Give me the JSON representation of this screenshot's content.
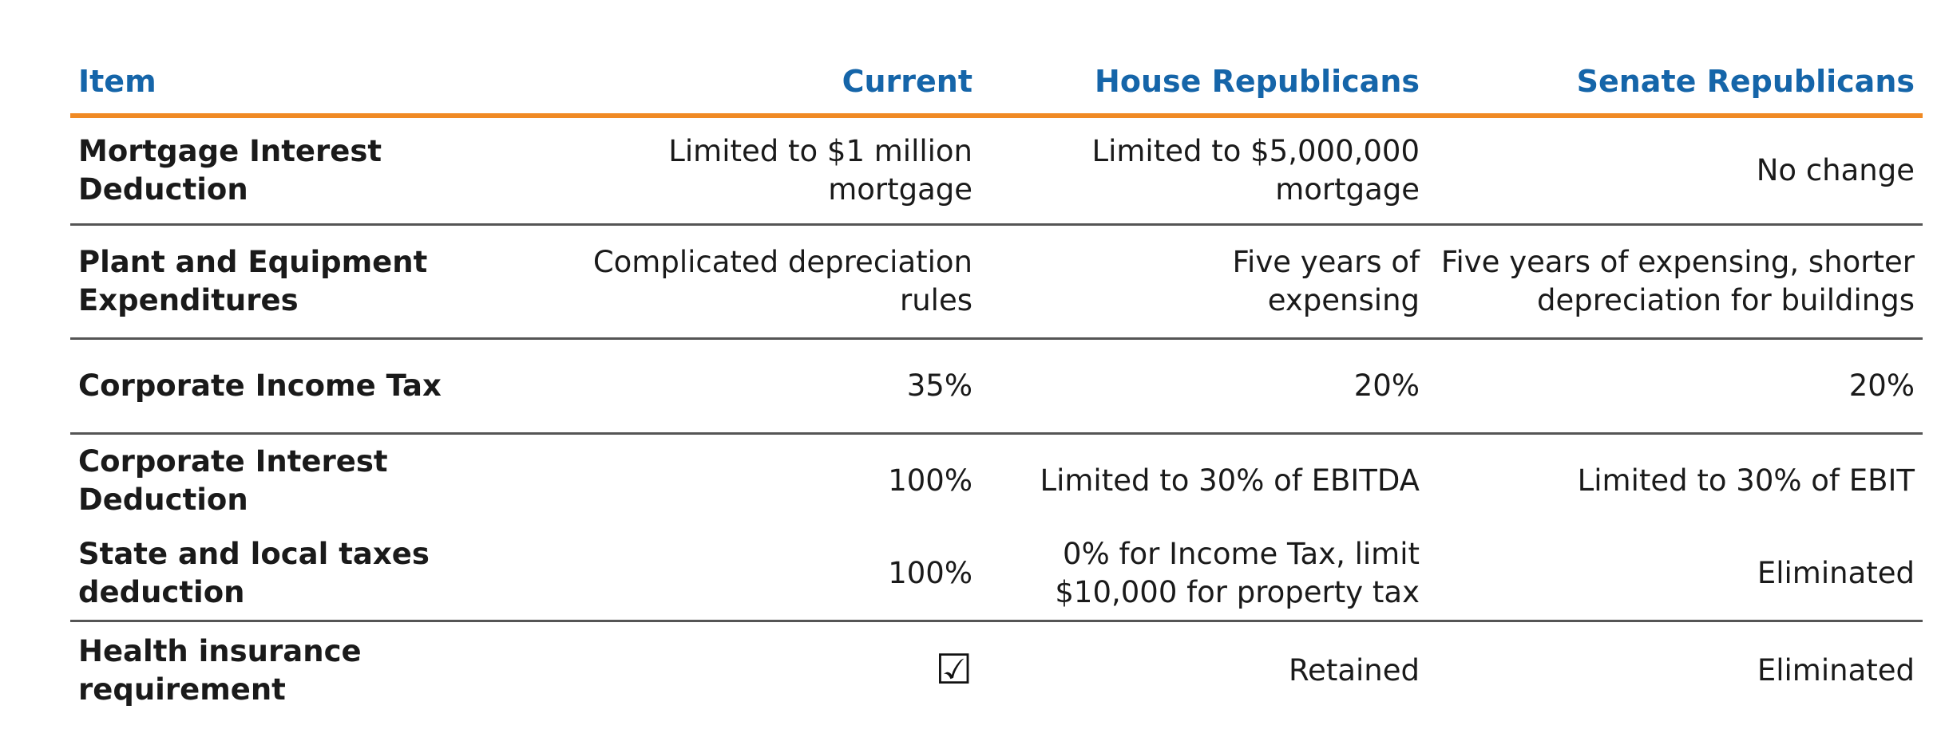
{
  "table": {
    "headers": [
      "Item",
      "Current",
      "House Republicans",
      "Senate Republicans"
    ],
    "rows": [
      {
        "item": "Mortgage Interest\nDeduction",
        "current": "Limited to $1 million\nmortgage",
        "house": "Limited to $5,000,000\nmortgage",
        "senate": "No change"
      },
      {
        "item": "Plant and Equipment\nExpenditures",
        "current": "Complicated depreciation\nrules",
        "house": "Five years of\nexpensing",
        "senate": "Five years of expensing, shorter\ndepreciation for buildings"
      },
      {
        "item": "Corporate Income Tax",
        "current": "35%",
        "house": "20%",
        "senate": "20%"
      },
      {
        "item": "Corporate Interest\nDeduction",
        "current": "100%",
        "house": "Limited to 30% of EBITDA",
        "senate": "Limited to 30% of EBIT"
      },
      {
        "item": "State and local taxes\ndeduction",
        "current": "100%",
        "house": "0% for Income Tax, limit\n$10,000 for property tax",
        "senate": "Eliminated"
      },
      {
        "item": "Health insurance\nrequirement",
        "current_icon": "checkbox-checked-icon",
        "current_glyph": "☑",
        "house": "Retained",
        "senate": "Eliminated"
      }
    ]
  },
  "colors": {
    "header_text": "#1565a9",
    "header_rule": "#f08a24",
    "row_rule": "#555555"
  }
}
